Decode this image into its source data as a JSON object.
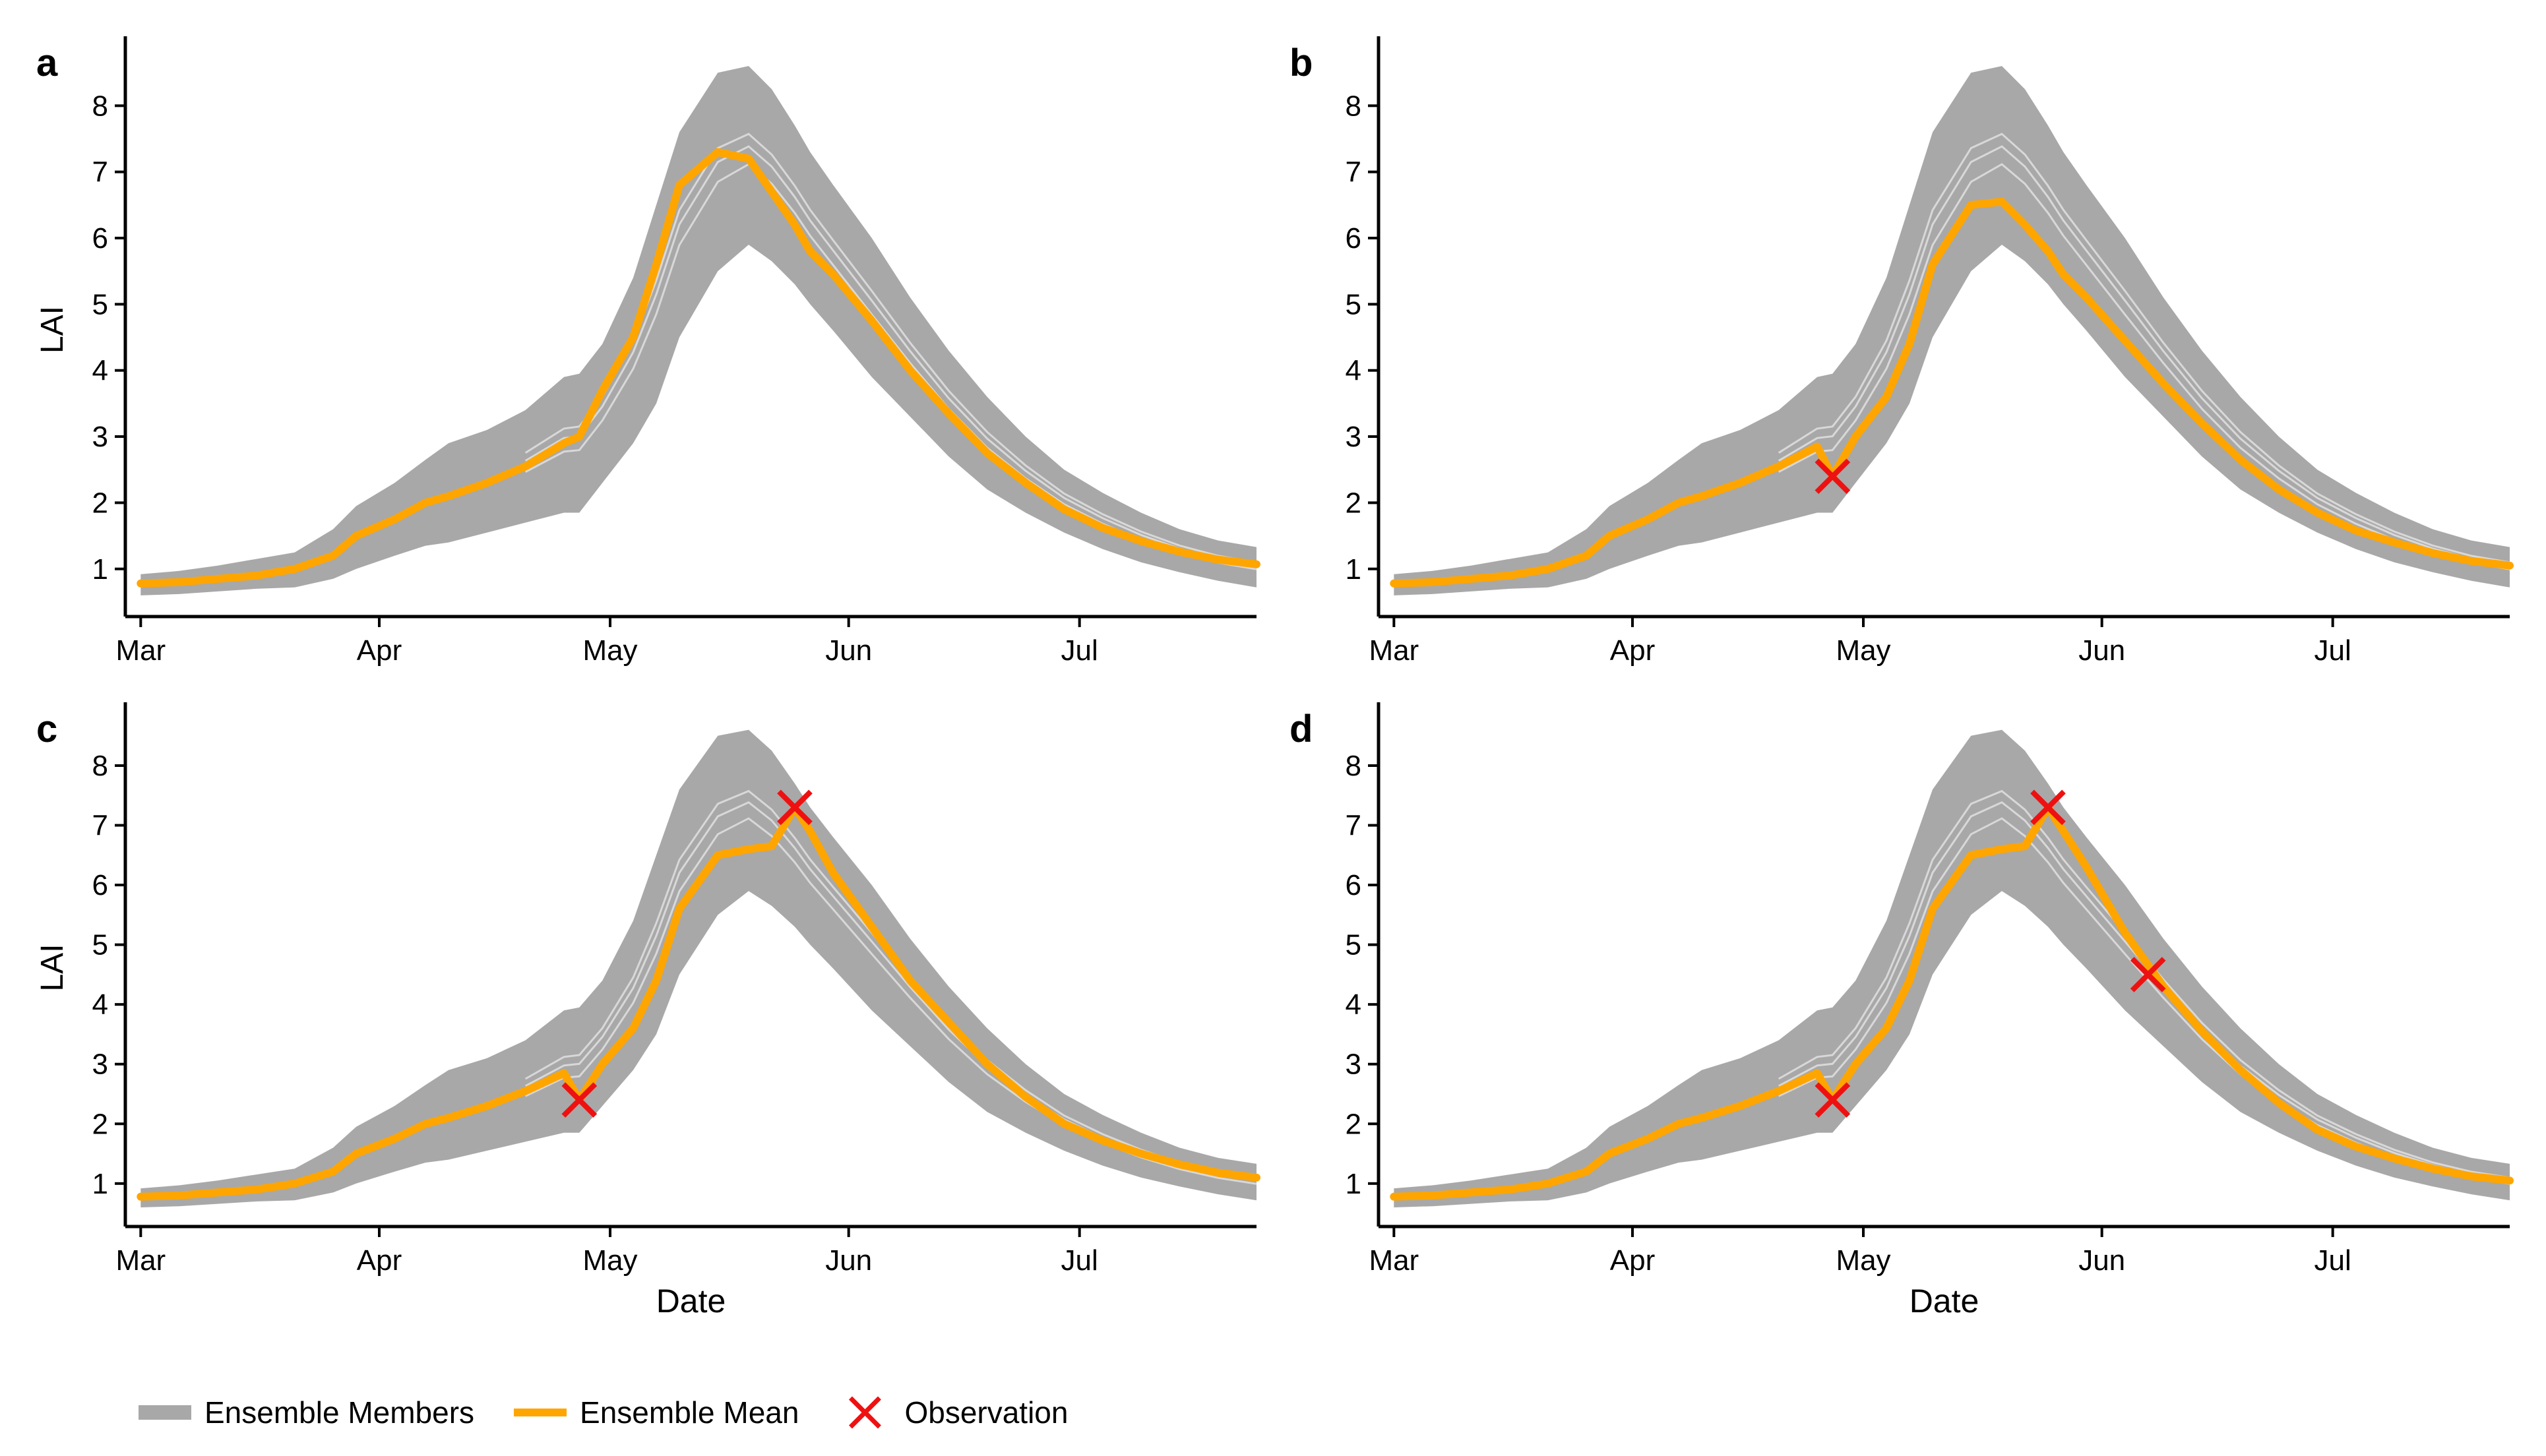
{
  "chart_data": {
    "type": "line",
    "ylabel": "LAI",
    "xlabel": "Date",
    "x_ticks": [
      "Mar",
      "Apr",
      "May",
      "Jun",
      "Jul"
    ],
    "x_tick_days": [
      0,
      31,
      61,
      92,
      122
    ],
    "y_ticks": [
      1,
      2,
      3,
      4,
      5,
      6,
      7,
      8
    ],
    "xlim_days": [
      -2,
      145
    ],
    "ylim": [
      0.28,
      8.95
    ],
    "series_x_days": [
      0,
      5,
      10,
      15,
      20,
      25,
      28,
      33,
      37,
      40,
      45,
      50,
      55,
      57,
      60,
      64,
      67,
      70,
      75,
      79,
      82,
      85,
      87,
      90,
      95,
      100,
      105,
      110,
      115,
      120,
      125,
      130,
      135,
      140,
      145
    ],
    "ensemble_lower": [
      0.6,
      0.62,
      0.66,
      0.7,
      0.72,
      0.85,
      1.0,
      1.2,
      1.35,
      1.4,
      1.55,
      1.7,
      1.85,
      1.85,
      2.3,
      2.9,
      3.5,
      4.5,
      5.5,
      5.9,
      5.65,
      5.3,
      5.0,
      4.6,
      3.9,
      3.3,
      2.7,
      2.2,
      1.85,
      1.55,
      1.3,
      1.1,
      0.95,
      0.82,
      0.72
    ],
    "ensemble_upper": [
      0.92,
      0.97,
      1.05,
      1.15,
      1.25,
      1.6,
      1.95,
      2.3,
      2.65,
      2.9,
      3.1,
      3.4,
      3.9,
      3.95,
      4.4,
      5.4,
      6.5,
      7.6,
      8.5,
      8.6,
      8.25,
      7.7,
      7.3,
      6.8,
      6.0,
      5.1,
      4.3,
      3.6,
      3.0,
      2.5,
      2.15,
      1.85,
      1.6,
      1.43,
      1.33
    ],
    "panels": [
      {
        "label": "a",
        "mean": [
          0.78,
          0.8,
          0.85,
          0.9,
          1.0,
          1.2,
          1.5,
          1.75,
          2.0,
          2.1,
          2.3,
          2.55,
          2.9,
          3.0,
          3.7,
          4.5,
          5.6,
          6.8,
          7.3,
          7.2,
          6.7,
          6.2,
          5.8,
          5.45,
          4.75,
          4.0,
          3.35,
          2.75,
          2.3,
          1.9,
          1.62,
          1.42,
          1.26,
          1.14,
          1.07
        ],
        "observations": []
      },
      {
        "label": "b",
        "mean": [
          0.78,
          0.8,
          0.85,
          0.9,
          1.0,
          1.2,
          1.5,
          1.75,
          2.0,
          2.1,
          2.3,
          2.55,
          2.85,
          2.4,
          3.0,
          3.6,
          4.4,
          5.6,
          6.5,
          6.55,
          6.2,
          5.8,
          5.45,
          5.1,
          4.45,
          3.8,
          3.2,
          2.65,
          2.2,
          1.85,
          1.58,
          1.4,
          1.24,
          1.12,
          1.05
        ],
        "observations": [
          {
            "day": 57,
            "value": 2.4
          }
        ]
      },
      {
        "label": "c",
        "mean": [
          0.78,
          0.8,
          0.85,
          0.9,
          1.0,
          1.2,
          1.5,
          1.75,
          2.0,
          2.1,
          2.3,
          2.55,
          2.85,
          2.4,
          3.0,
          3.6,
          4.4,
          5.6,
          6.5,
          6.6,
          6.65,
          7.3,
          6.9,
          6.2,
          5.3,
          4.4,
          3.7,
          3.0,
          2.45,
          2.0,
          1.72,
          1.5,
          1.32,
          1.18,
          1.1
        ],
        "observations": [
          {
            "day": 57,
            "value": 2.4
          },
          {
            "day": 85,
            "value": 7.3
          }
        ]
      },
      {
        "label": "d",
        "mean": [
          0.78,
          0.8,
          0.85,
          0.9,
          1.0,
          1.2,
          1.5,
          1.75,
          2.0,
          2.1,
          2.3,
          2.55,
          2.85,
          2.4,
          3.0,
          3.6,
          4.4,
          5.6,
          6.5,
          6.6,
          6.65,
          7.3,
          6.9,
          6.3,
          5.2,
          4.3,
          3.55,
          2.9,
          2.35,
          1.9,
          1.62,
          1.42,
          1.25,
          1.12,
          1.05
        ],
        "observations": [
          {
            "day": 57,
            "value": 2.4
          },
          {
            "day": 85,
            "value": 7.3
          },
          {
            "day": 98,
            "value": 4.5
          }
        ]
      }
    ],
    "legend": [
      {
        "key": "members",
        "label": "Ensemble Members",
        "color": "#a8a8a8"
      },
      {
        "key": "mean",
        "label": "Ensemble Mean",
        "color": "#ffa500"
      },
      {
        "key": "obs",
        "label": "Observation",
        "color": "#ee1111"
      }
    ],
    "legend_position": "bottom-left"
  }
}
